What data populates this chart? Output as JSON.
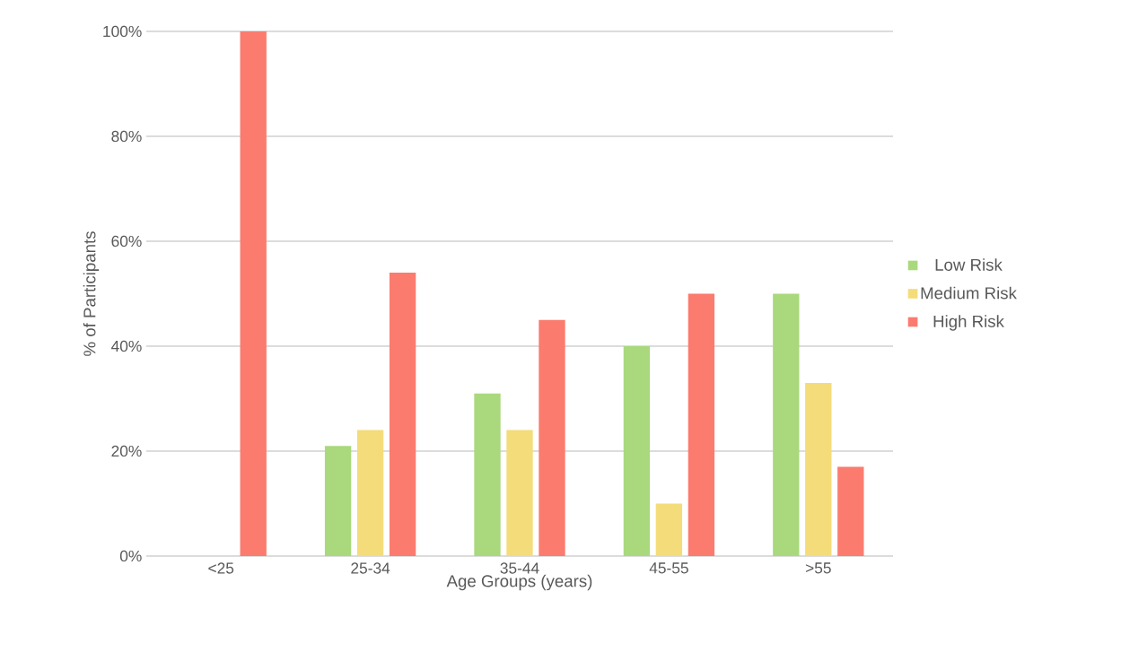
{
  "chart_data": {
    "type": "bar",
    "xlabel": "Age Groups (years)",
    "ylabel": "% of Participants",
    "categories": [
      "<25",
      "25-34",
      "35-44",
      "45-55",
      ">55"
    ],
    "series": [
      {
        "name": "Low Risk",
        "color": "#a9d97c",
        "values": [
          0,
          21,
          31,
          40,
          50
        ]
      },
      {
        "name": "Medium Risk",
        "color": "#f5dc7a",
        "values": [
          0,
          24,
          24,
          10,
          33
        ]
      },
      {
        "name": "High Risk",
        "color": "#fb7b6f",
        "values": [
          100,
          54,
          45,
          50,
          17
        ]
      }
    ],
    "ylim": [
      0,
      100
    ],
    "yticks": [
      {
        "value": 0,
        "label": "0%"
      },
      {
        "value": 20,
        "label": "20%"
      },
      {
        "value": 40,
        "label": "40%"
      },
      {
        "value": 60,
        "label": "60%"
      },
      {
        "value": 80,
        "label": "80%"
      },
      {
        "value": 100,
        "label": "100%"
      }
    ],
    "grid": "y",
    "legend": "right"
  }
}
